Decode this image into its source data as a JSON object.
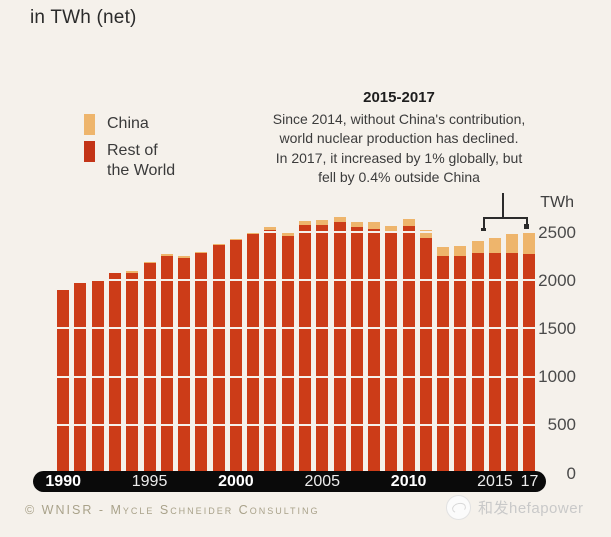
{
  "title": "in TWh (net)",
  "legend": {
    "china": "China",
    "rest_of_world_lines": [
      "Rest of",
      "the World"
    ]
  },
  "annotation": {
    "heading": "2015-2017",
    "lines": [
      "Since 2014, without China's contribution,",
      "world nuclear production has declined.",
      "In 2017, it increased by 1% globally, but",
      "fell by 0.4% outside China"
    ]
  },
  "axis": {
    "unit_label": "TWh",
    "y_ticks": [
      2500,
      2000,
      1500,
      1000,
      500,
      0
    ],
    "x_ticks": [
      {
        "label": "1990",
        "index": 0,
        "bold": true
      },
      {
        "label": "1995",
        "index": 5,
        "bold": false
      },
      {
        "label": "2000",
        "index": 10,
        "bold": true
      },
      {
        "label": "2005",
        "index": 15,
        "bold": false
      },
      {
        "label": "2010",
        "index": 20,
        "bold": true
      },
      {
        "label": "2015",
        "index": 25,
        "bold": false
      },
      {
        "label": "17",
        "index": 27,
        "bold": false
      }
    ]
  },
  "footer": {
    "copyright": "© WNISR - Mycle Schneider Consulting"
  },
  "watermark": {
    "text": "和发hefapower"
  },
  "colors": {
    "background": "#F5F1EB",
    "china": "#EEB56C",
    "rest_of_world": "#CC3C18",
    "axis_pill": "#0a0a0a"
  },
  "chart_data": {
    "type": "bar",
    "stacked": true,
    "title": "in TWh (net)",
    "ylabel": "TWh",
    "ylim": [
      0,
      2700
    ],
    "grid": "horizontal every 500 TWh",
    "legend_position": "upper left",
    "x": [
      1990,
      1991,
      1992,
      1993,
      1994,
      1995,
      1996,
      1997,
      1998,
      1999,
      2000,
      2001,
      2002,
      2003,
      2004,
      2005,
      2006,
      2007,
      2008,
      2009,
      2010,
      2011,
      2012,
      2013,
      2014,
      2015,
      2016,
      2017
    ],
    "series": [
      {
        "name": "Rest of the World",
        "color": "#CC3C18",
        "values": [
          1895,
          1968,
          1993,
          2070,
          2077,
          2180,
          2254,
          2234,
          2277,
          2365,
          2414,
          2484,
          2522,
          2462,
          2568,
          2576,
          2603,
          2549,
          2536,
          2492,
          2559,
          2436,
          2254,
          2254,
          2286,
          2280,
          2278,
          2271
        ]
      },
      {
        "name": "China",
        "color": "#EEB56C",
        "values": [
          0,
          0,
          0,
          0,
          14,
          12,
          14,
          14,
          14,
          15,
          16,
          17,
          25,
          42,
          48,
          50,
          55,
          59,
          65,
          66,
          71,
          82,
          92,
          105,
          124,
          161,
          198,
          232
        ]
      }
    ]
  }
}
